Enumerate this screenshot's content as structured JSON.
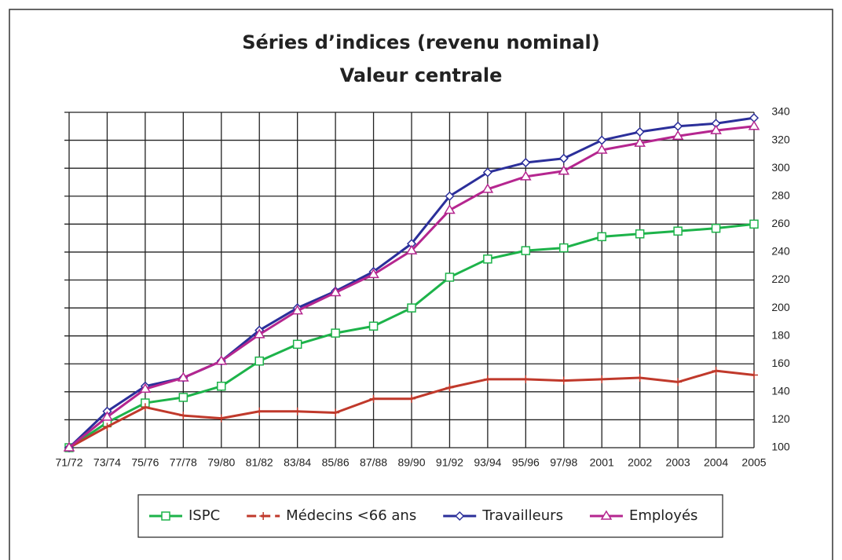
{
  "chart_data": {
    "type": "line",
    "title": "Séries d’indices (revenu nominal)",
    "subtitle": "Valeur centrale",
    "categories": [
      "71/72",
      "73/74",
      "75/76",
      "77/78",
      "79/80",
      "81/82",
      "83/84",
      "85/86",
      "87/88",
      "89/90",
      "91/92",
      "93/94",
      "95/96",
      "97/98",
      "2001",
      "2002",
      "2003",
      "2004",
      "2005"
    ],
    "series": [
      {
        "name": "ISPC",
        "color": "#1db34a",
        "marker": "square",
        "values": [
          100,
          118,
          132,
          136,
          144,
          162,
          174,
          182,
          187,
          200,
          222,
          235,
          241,
          243,
          251,
          253,
          255,
          257,
          260
        ]
      },
      {
        "name": "Médecins <66 ans",
        "color": "#c0392b",
        "marker": "plus",
        "values": [
          100,
          115,
          129,
          123,
          121,
          126,
          126,
          125,
          135,
          135,
          143,
          149,
          149,
          148,
          149,
          150,
          147,
          155,
          152
        ]
      },
      {
        "name": "Travailleurs",
        "color": "#2b2f9a",
        "marker": "diamond",
        "values": [
          100,
          126,
          144,
          150,
          162,
          184,
          200,
          212,
          226,
          246,
          280,
          297,
          304,
          307,
          320,
          326,
          330,
          332,
          336
        ]
      },
      {
        "name": "Employés",
        "color": "#b5268f",
        "marker": "triangle",
        "values": [
          100,
          122,
          142,
          150,
          162,
          181,
          198,
          211,
          224,
          241,
          270,
          285,
          294,
          298,
          313,
          318,
          323,
          327,
          330
        ]
      }
    ],
    "ylim": [
      100,
      340
    ],
    "yticks": [
      100,
      120,
      140,
      160,
      180,
      200,
      220,
      240,
      260,
      280,
      300,
      320,
      340
    ],
    "yaxis_side": "right",
    "grid": true
  }
}
